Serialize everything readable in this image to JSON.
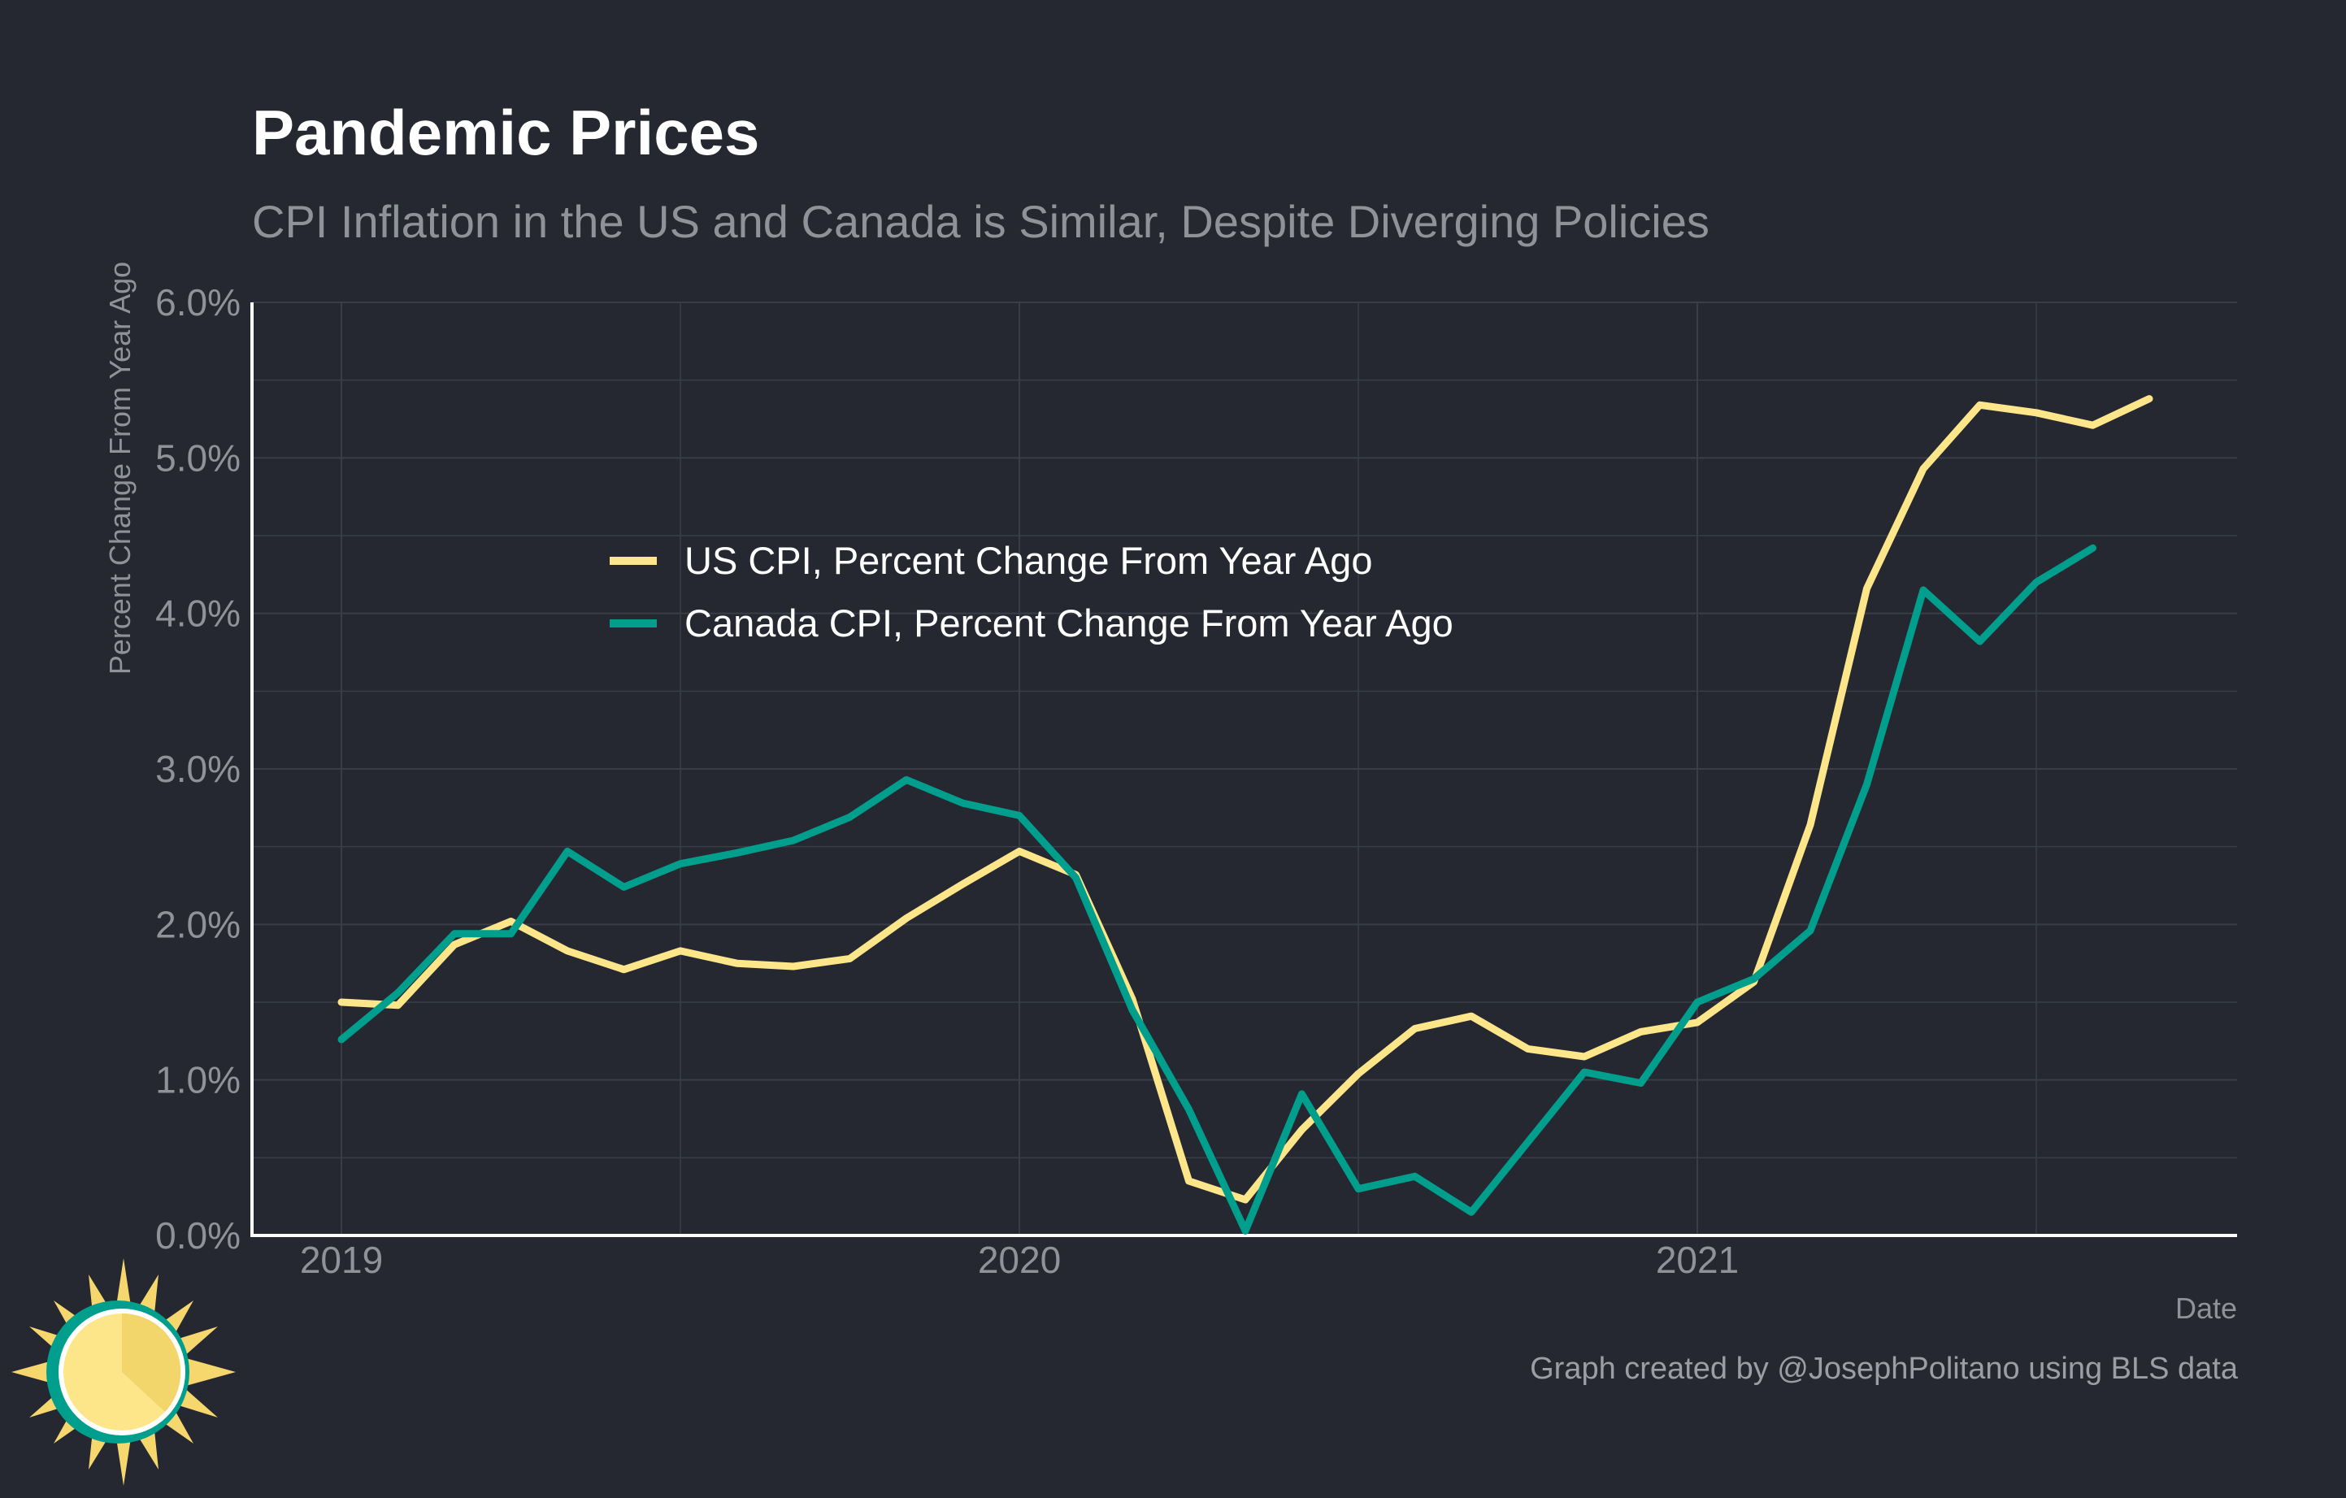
{
  "title": "Pandemic Prices",
  "subtitle": "CPI Inflation in the US and Canada is Similar, Despite Diverging Policies",
  "credit": "Graph created by @JosephPolitano using BLS data",
  "colors": {
    "background": "#252830",
    "us": "#fde68a",
    "canada": "#009e8c",
    "grid": "#3a3d45"
  },
  "logo": {
    "icon": "sun-icon"
  },
  "chart_data": {
    "type": "line",
    "xlabel": "Date",
    "ylabel": "Percent Change From Year Ago",
    "ylim": [
      0,
      6
    ],
    "yticks": [
      "0.0%",
      "1.0%",
      "2.0%",
      "3.0%",
      "4.0%",
      "5.0%",
      "6.0%"
    ],
    "xticks": [
      "2019",
      "2020",
      "2021"
    ],
    "x_start": "2019-01",
    "grid": true,
    "legend_position": "upper-left-center",
    "series": [
      {
        "name": "US CPI, Percent Change From Year Ago",
        "color": "#fde68a",
        "values": [
          1.5,
          1.48,
          1.87,
          2.02,
          1.83,
          1.71,
          1.83,
          1.75,
          1.73,
          1.78,
          2.04,
          2.26,
          2.47,
          2.32,
          1.52,
          0.35,
          0.23,
          0.68,
          1.04,
          1.33,
          1.41,
          1.2,
          1.15,
          1.31,
          1.37,
          1.63,
          2.64,
          4.16,
          4.93,
          5.34,
          5.29,
          5.21,
          5.38
        ]
      },
      {
        "name": "Canada CPI, Percent Change From Year Ago",
        "color": "#009e8c",
        "values": [
          1.26,
          1.56,
          1.94,
          1.94,
          2.47,
          2.24,
          2.39,
          2.46,
          2.54,
          2.69,
          2.93,
          2.78,
          2.7,
          2.3,
          1.45,
          0.81,
          0.03,
          0.91,
          0.3,
          0.38,
          0.15,
          0.6,
          1.05,
          0.98,
          1.5,
          1.65,
          1.96,
          2.9,
          4.15,
          3.82,
          4.2,
          4.42
        ]
      }
    ]
  }
}
